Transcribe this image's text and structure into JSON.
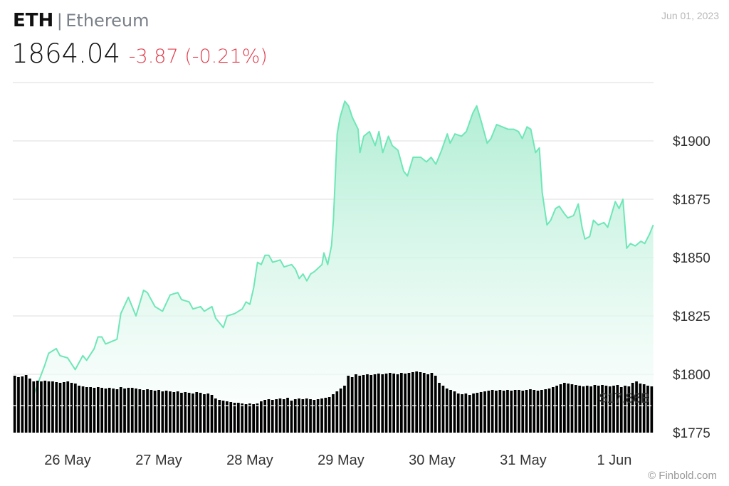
{
  "header": {
    "symbol": "ETH",
    "separator": "|",
    "name": "Ethereum",
    "price": "1864.04",
    "change": "-3.87 (-0.21%)",
    "date": "Jun 01, 2023",
    "watermark": "© Finbold.com"
  },
  "colors": {
    "line": "#6ee7b7",
    "fill": "#c8f3df",
    "change_negative": "#e0404f",
    "volume": "#000000"
  },
  "chart_data": {
    "type": "area",
    "title": "",
    "xlabel": "",
    "ylabel": "",
    "ylim": [
      1775,
      1925
    ],
    "grid": true,
    "y_ticks": [
      "$1775",
      "$1800",
      "$1825",
      "$1850",
      "$1875",
      "$1900"
    ],
    "y_tick_values": [
      1775,
      1800,
      1825,
      1850,
      1875,
      1900
    ],
    "x_ticks": [
      "26 May",
      "27 May",
      "28 May",
      "29 May",
      "30 May",
      "31 May",
      "1 Jun"
    ],
    "x_tick_values": [
      "2023-05-26T00:00",
      "2023-05-27T00:00",
      "2023-05-28T00:00",
      "2023-05-29T00:00",
      "2023-05-30T00:00",
      "2023-05-31T00:00",
      "2023-06-01T00:00"
    ],
    "volume_label": "$17.86B",
    "series": [
      {
        "points": [
          [
            "2023-05-25T15:00",
            1791
          ],
          [
            "2023-05-25T18:00",
            1804
          ],
          [
            "2023-05-25T19:00",
            1809
          ],
          [
            "2023-05-25T21:00",
            1811
          ],
          [
            "2023-05-25T22:00",
            1808
          ],
          [
            "2023-05-26T00:00",
            1807
          ],
          [
            "2023-05-26T02:00",
            1802
          ],
          [
            "2023-05-26T04:00",
            1808
          ],
          [
            "2023-05-26T05:00",
            1806
          ],
          [
            "2023-05-26T07:00",
            1811
          ],
          [
            "2023-05-26T08:00",
            1816
          ],
          [
            "2023-05-26T09:00",
            1816
          ],
          [
            "2023-05-26T10:00",
            1813
          ],
          [
            "2023-05-26T13:00",
            1815
          ],
          [
            "2023-05-26T14:00",
            1826
          ],
          [
            "2023-05-26T16:00",
            1833
          ],
          [
            "2023-05-26T18:00",
            1825
          ],
          [
            "2023-05-26T20:00",
            1836
          ],
          [
            "2023-05-26T21:00",
            1835
          ],
          [
            "2023-05-26T23:00",
            1829
          ],
          [
            "2023-05-27T01:00",
            1827
          ],
          [
            "2023-05-27T03:00",
            1834
          ],
          [
            "2023-05-27T05:00",
            1835
          ],
          [
            "2023-05-27T06:00",
            1832
          ],
          [
            "2023-05-27T08:00",
            1831
          ],
          [
            "2023-05-27T09:00",
            1828
          ],
          [
            "2023-05-27T11:00",
            1829
          ],
          [
            "2023-05-27T12:00",
            1827
          ],
          [
            "2023-05-27T14:00",
            1829
          ],
          [
            "2023-05-27T15:00",
            1824
          ],
          [
            "2023-05-27T17:00",
            1820
          ],
          [
            "2023-05-27T18:00",
            1825
          ],
          [
            "2023-05-27T20:00",
            1826
          ],
          [
            "2023-05-27T22:00",
            1828
          ],
          [
            "2023-05-27T23:00",
            1831
          ],
          [
            "2023-05-28T00:00",
            1830
          ],
          [
            "2023-05-28T01:00",
            1837
          ],
          [
            "2023-05-28T02:00",
            1848
          ],
          [
            "2023-05-28T03:00",
            1847
          ],
          [
            "2023-05-28T04:00",
            1851
          ],
          [
            "2023-05-28T05:00",
            1851
          ],
          [
            "2023-05-28T06:00",
            1848
          ],
          [
            "2023-05-28T08:00",
            1849
          ],
          [
            "2023-05-28T09:00",
            1846
          ],
          [
            "2023-05-28T11:00",
            1847
          ],
          [
            "2023-05-28T12:00",
            1845
          ],
          [
            "2023-05-28T13:00",
            1841
          ],
          [
            "2023-05-28T14:00",
            1843
          ],
          [
            "2023-05-28T15:00",
            1840
          ],
          [
            "2023-05-28T16:00",
            1843
          ],
          [
            "2023-05-28T17:00",
            1844
          ],
          [
            "2023-05-28T19:00",
            1847
          ],
          [
            "2023-05-28T19:30",
            1852
          ],
          [
            "2023-05-28T20:30",
            1847
          ],
          [
            "2023-05-28T21:30",
            1855
          ],
          [
            "2023-05-28T22:00",
            1866
          ],
          [
            "2023-05-28T23:00",
            1903
          ],
          [
            "2023-05-28T23:45",
            1910
          ],
          [
            "2023-05-29T01:00",
            1917
          ],
          [
            "2023-05-29T02:00",
            1915
          ],
          [
            "2023-05-29T03:00",
            1910
          ],
          [
            "2023-05-29T04:30",
            1905
          ],
          [
            "2023-05-29T05:00",
            1895
          ],
          [
            "2023-05-29T06:00",
            1902
          ],
          [
            "2023-05-29T07:30",
            1904
          ],
          [
            "2023-05-29T09:00",
            1898
          ],
          [
            "2023-05-29T10:00",
            1904
          ],
          [
            "2023-05-29T11:00",
            1895
          ],
          [
            "2023-05-29T12:30",
            1902
          ],
          [
            "2023-05-29T13:30",
            1898
          ],
          [
            "2023-05-29T15:00",
            1896
          ],
          [
            "2023-05-29T16:30",
            1887
          ],
          [
            "2023-05-29T17:30",
            1885
          ],
          [
            "2023-05-29T19:00",
            1893
          ],
          [
            "2023-05-29T21:00",
            1893
          ],
          [
            "2023-05-29T22:30",
            1891
          ],
          [
            "2023-05-29T23:45",
            1893
          ],
          [
            "2023-05-30T01:00",
            1890
          ],
          [
            "2023-05-30T02:30",
            1896
          ],
          [
            "2023-05-30T04:00",
            1903
          ],
          [
            "2023-05-30T04:45",
            1899
          ],
          [
            "2023-05-30T06:00",
            1903
          ],
          [
            "2023-05-30T07:45",
            1902
          ],
          [
            "2023-05-30T09:00",
            1904
          ],
          [
            "2023-05-30T10:45",
            1912
          ],
          [
            "2023-05-30T11:45",
            1915
          ],
          [
            "2023-05-30T13:00",
            1908
          ],
          [
            "2023-05-30T14:30",
            1899
          ],
          [
            "2023-05-30T15:30",
            1901
          ],
          [
            "2023-05-30T17:00",
            1907
          ],
          [
            "2023-05-30T18:30",
            1906
          ],
          [
            "2023-05-30T20:00",
            1905
          ],
          [
            "2023-05-30T21:30",
            1905
          ],
          [
            "2023-05-30T22:45",
            1904
          ],
          [
            "2023-05-30T23:45",
            1901
          ],
          [
            "2023-05-31T01:00",
            1906
          ],
          [
            "2023-05-31T02:00",
            1905
          ],
          [
            "2023-05-31T03:15",
            1895
          ],
          [
            "2023-05-31T04:15",
            1897
          ],
          [
            "2023-05-31T05:00",
            1878
          ],
          [
            "2023-05-31T06:15",
            1864
          ],
          [
            "2023-05-31T07:15",
            1866
          ],
          [
            "2023-05-31T08:30",
            1871
          ],
          [
            "2023-05-31T09:30",
            1872
          ],
          [
            "2023-05-31T10:45",
            1869
          ],
          [
            "2023-05-31T11:45",
            1867
          ],
          [
            "2023-05-31T13:15",
            1868
          ],
          [
            "2023-05-31T14:30",
            1873
          ],
          [
            "2023-05-31T15:30",
            1863
          ],
          [
            "2023-05-31T16:15",
            1858
          ],
          [
            "2023-05-31T17:30",
            1859
          ],
          [
            "2023-05-31T18:30",
            1866
          ],
          [
            "2023-05-31T19:45",
            1864
          ],
          [
            "2023-05-31T21:15",
            1865
          ],
          [
            "2023-05-31T22:15",
            1863
          ],
          [
            "2023-06-01T00:15",
            1874
          ],
          [
            "2023-06-01T01:15",
            1871
          ],
          [
            "2023-06-01T02:15",
            1875
          ],
          [
            "2023-06-01T03:15",
            1854
          ],
          [
            "2023-06-01T04:15",
            1856
          ],
          [
            "2023-06-01T05:30",
            1855
          ],
          [
            "2023-06-01T07:00",
            1857
          ],
          [
            "2023-06-01T08:00",
            1856
          ],
          [
            "2023-06-01T09:15",
            1860
          ],
          [
            "2023-06-01T10:15",
            1864
          ]
        ]
      }
    ],
    "volume_relative": [
      80,
      78,
      79,
      81,
      76,
      72,
      73,
      72,
      73,
      72,
      72,
      71,
      70,
      71,
      72,
      70,
      69,
      66,
      65,
      64,
      64,
      63,
      64,
      63,
      62,
      63,
      62,
      61,
      64,
      62,
      63,
      63,
      62,
      61,
      60,
      61,
      60,
      59,
      60,
      58,
      59,
      58,
      57,
      58,
      56,
      57,
      56,
      55,
      57,
      56,
      54,
      55,
      53,
      48,
      46,
      45,
      44,
      43,
      42,
      42,
      41,
      40,
      41,
      40,
      41,
      44,
      46,
      47,
      46,
      47,
      48,
      47,
      49,
      45,
      47,
      48,
      47,
      48,
      47,
      46,
      47,
      48,
      49,
      50,
      54,
      58,
      62,
      66,
      80,
      78,
      82,
      80,
      81,
      82,
      81,
      82,
      83,
      82,
      83,
      84,
      83,
      82,
      84,
      83,
      84,
      85,
      86,
      85,
      84,
      82,
      84,
      80,
      70,
      66,
      62,
      60,
      58,
      55,
      54,
      55,
      53,
      55,
      56,
      57,
      58,
      59,
      60,
      59,
      60,
      59,
      60,
      59,
      60,
      60,
      59,
      60,
      61,
      60,
      59,
      60,
      61,
      62,
      64,
      66,
      68,
      70,
      69,
      68,
      67,
      66,
      65,
      66,
      65,
      67,
      66,
      67,
      66,
      65,
      66,
      67,
      64,
      66,
      65,
      70,
      72,
      69,
      68,
      66,
      65
    ]
  }
}
